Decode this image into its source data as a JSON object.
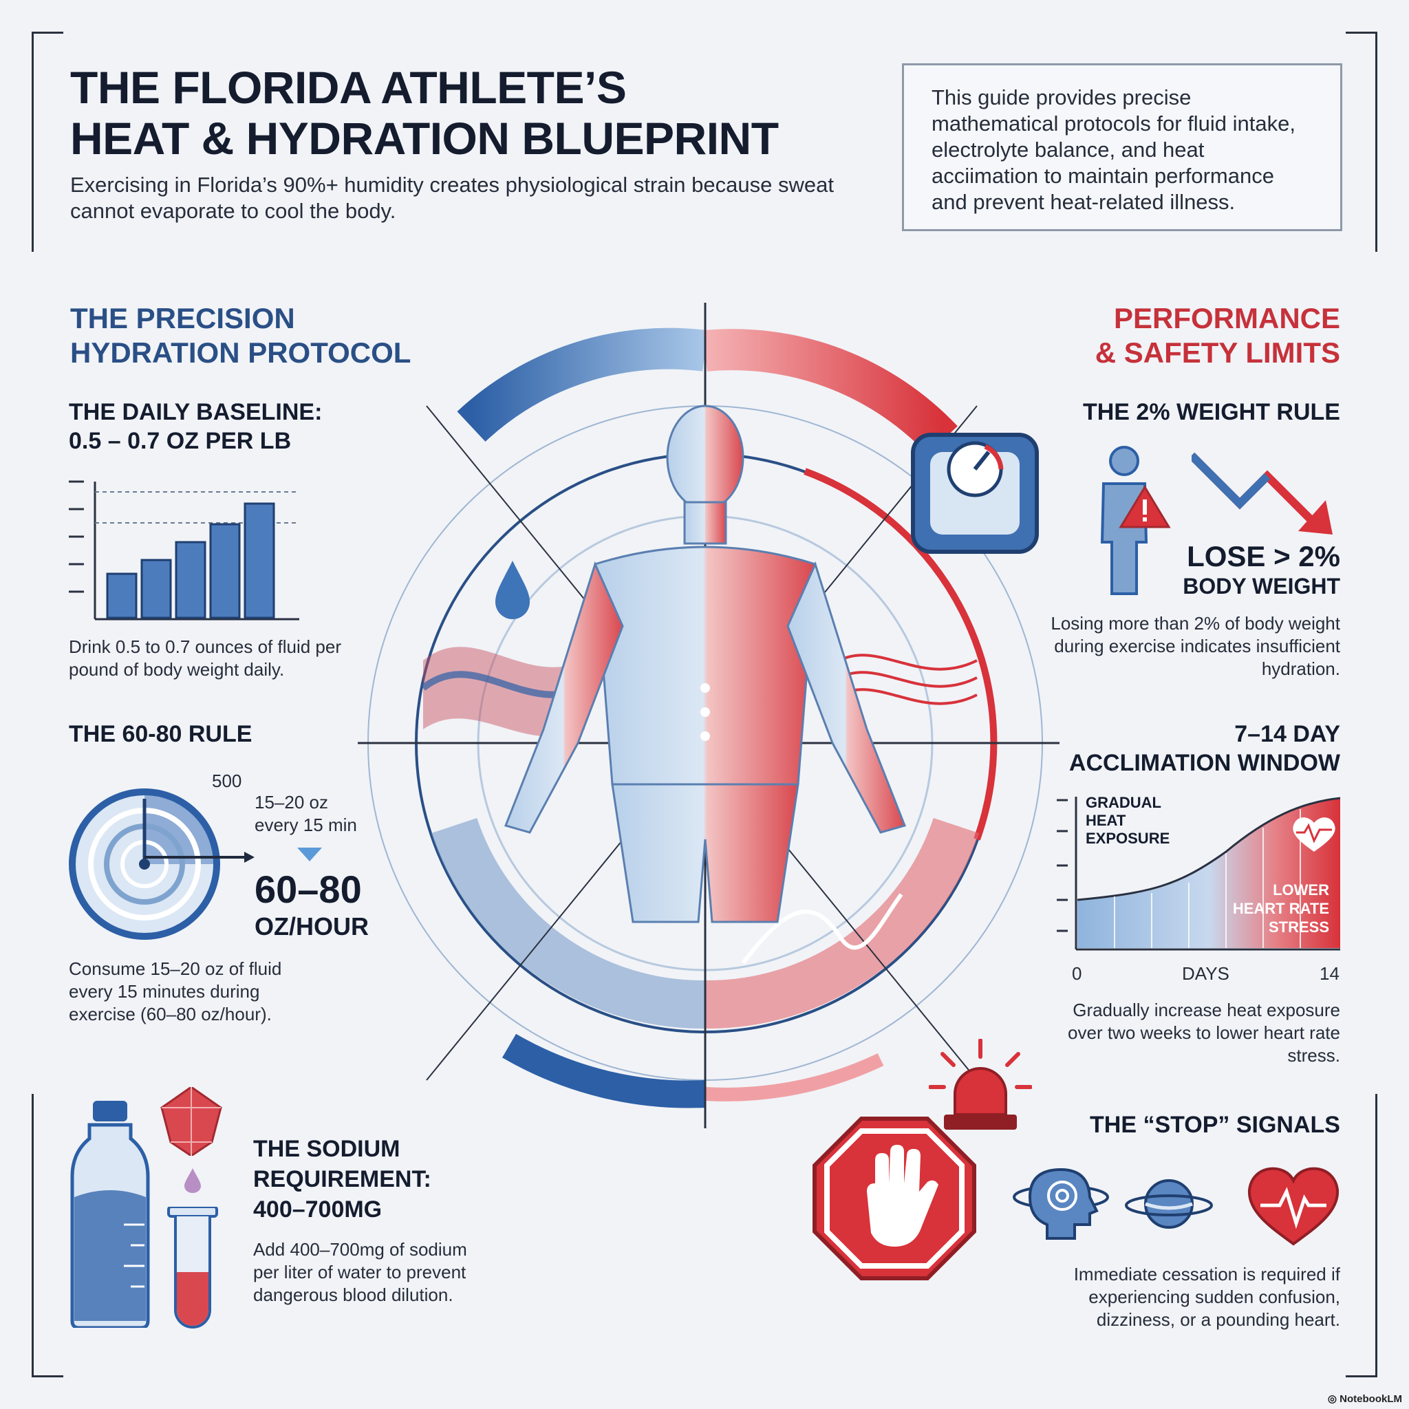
{
  "header": {
    "title_line1": "THE FLORIDA ATHLETE’S",
    "title_line2": "HEAT & HYDRATION BLUEPRINT",
    "subtitle": "Exercising in Florida’s 90%+ humidity creates physiological strain because sweat cannot evaporate to cool the body.",
    "intro": "This guide provides precise mathematical protocols for fluid intake, electrolyte balance, and heat acciimation to maintain performance and prevent heat-related illness."
  },
  "left": {
    "section_line1": "THE PRECISION",
    "section_line2": "HYDRATION PROTOCOL",
    "baseline": {
      "heading_line1": "THE DAILY BASELINE:",
      "heading_line2": "0.5 – 0.7 OZ PER LB",
      "body": "Drink 0.5 to 0.7 ounces of fluid per pound of body weight daily.",
      "bars": [
        0.32,
        0.42,
        0.55,
        0.68,
        0.83
      ]
    },
    "rule6080": {
      "heading": "THE 60-80 RULE",
      "dial_label": "500",
      "interval_line1": "15–20 oz",
      "interval_line2": "every 15 min",
      "stat_value": "60–80",
      "stat_unit": "OZ/HOUR",
      "body": "Consume 15–20 oz of fluid every 15 minutes during exercise (60–80 oz/hour)."
    },
    "sodium": {
      "heading_line1": "THE SODIUM",
      "heading_line2": "REQUIREMENT:",
      "heading_line3": "400–700MG",
      "body": "Add 400–700mg of sodium per liter of water to prevent dangerous blood dilution."
    }
  },
  "right": {
    "section_line1": "PERFORMANCE",
    "section_line2": "& SAFETY LIMITS",
    "weight_rule": {
      "heading": "THE 2% WEIGHT RULE",
      "stat_line1": "LOSE > 2%",
      "stat_line2": "BODY WEIGHT",
      "body": "Losing more than 2% of body weight during exercise indicates insufficient hydration."
    },
    "acclimation": {
      "heading_line1": "7–14 DAY",
      "heading_line2": "ACCLIMATION WINDOW",
      "chart_label_line1": "GRADUAL",
      "chart_label_line2": "HEAT",
      "chart_label_line3": "EXPOSURE",
      "result_line1": "LOWER",
      "result_line2": "HEART RATE",
      "result_line3": "STRESS",
      "x_start": "0",
      "x_label": "DAYS",
      "x_end": "14",
      "body": "Gradually increase heat exposure over two weeks to lower heart rate stress."
    },
    "stop": {
      "heading": "THE “STOP” SIGNALS",
      "body": "Immediate cessation is required if experiencing sudden confusion, dizziness, or a pounding heart."
    }
  },
  "footer": {
    "brand": "NotebookLM"
  },
  "colors": {
    "blue": "#2a5a9c",
    "red": "#d8323a",
    "ink": "#141c2e"
  }
}
